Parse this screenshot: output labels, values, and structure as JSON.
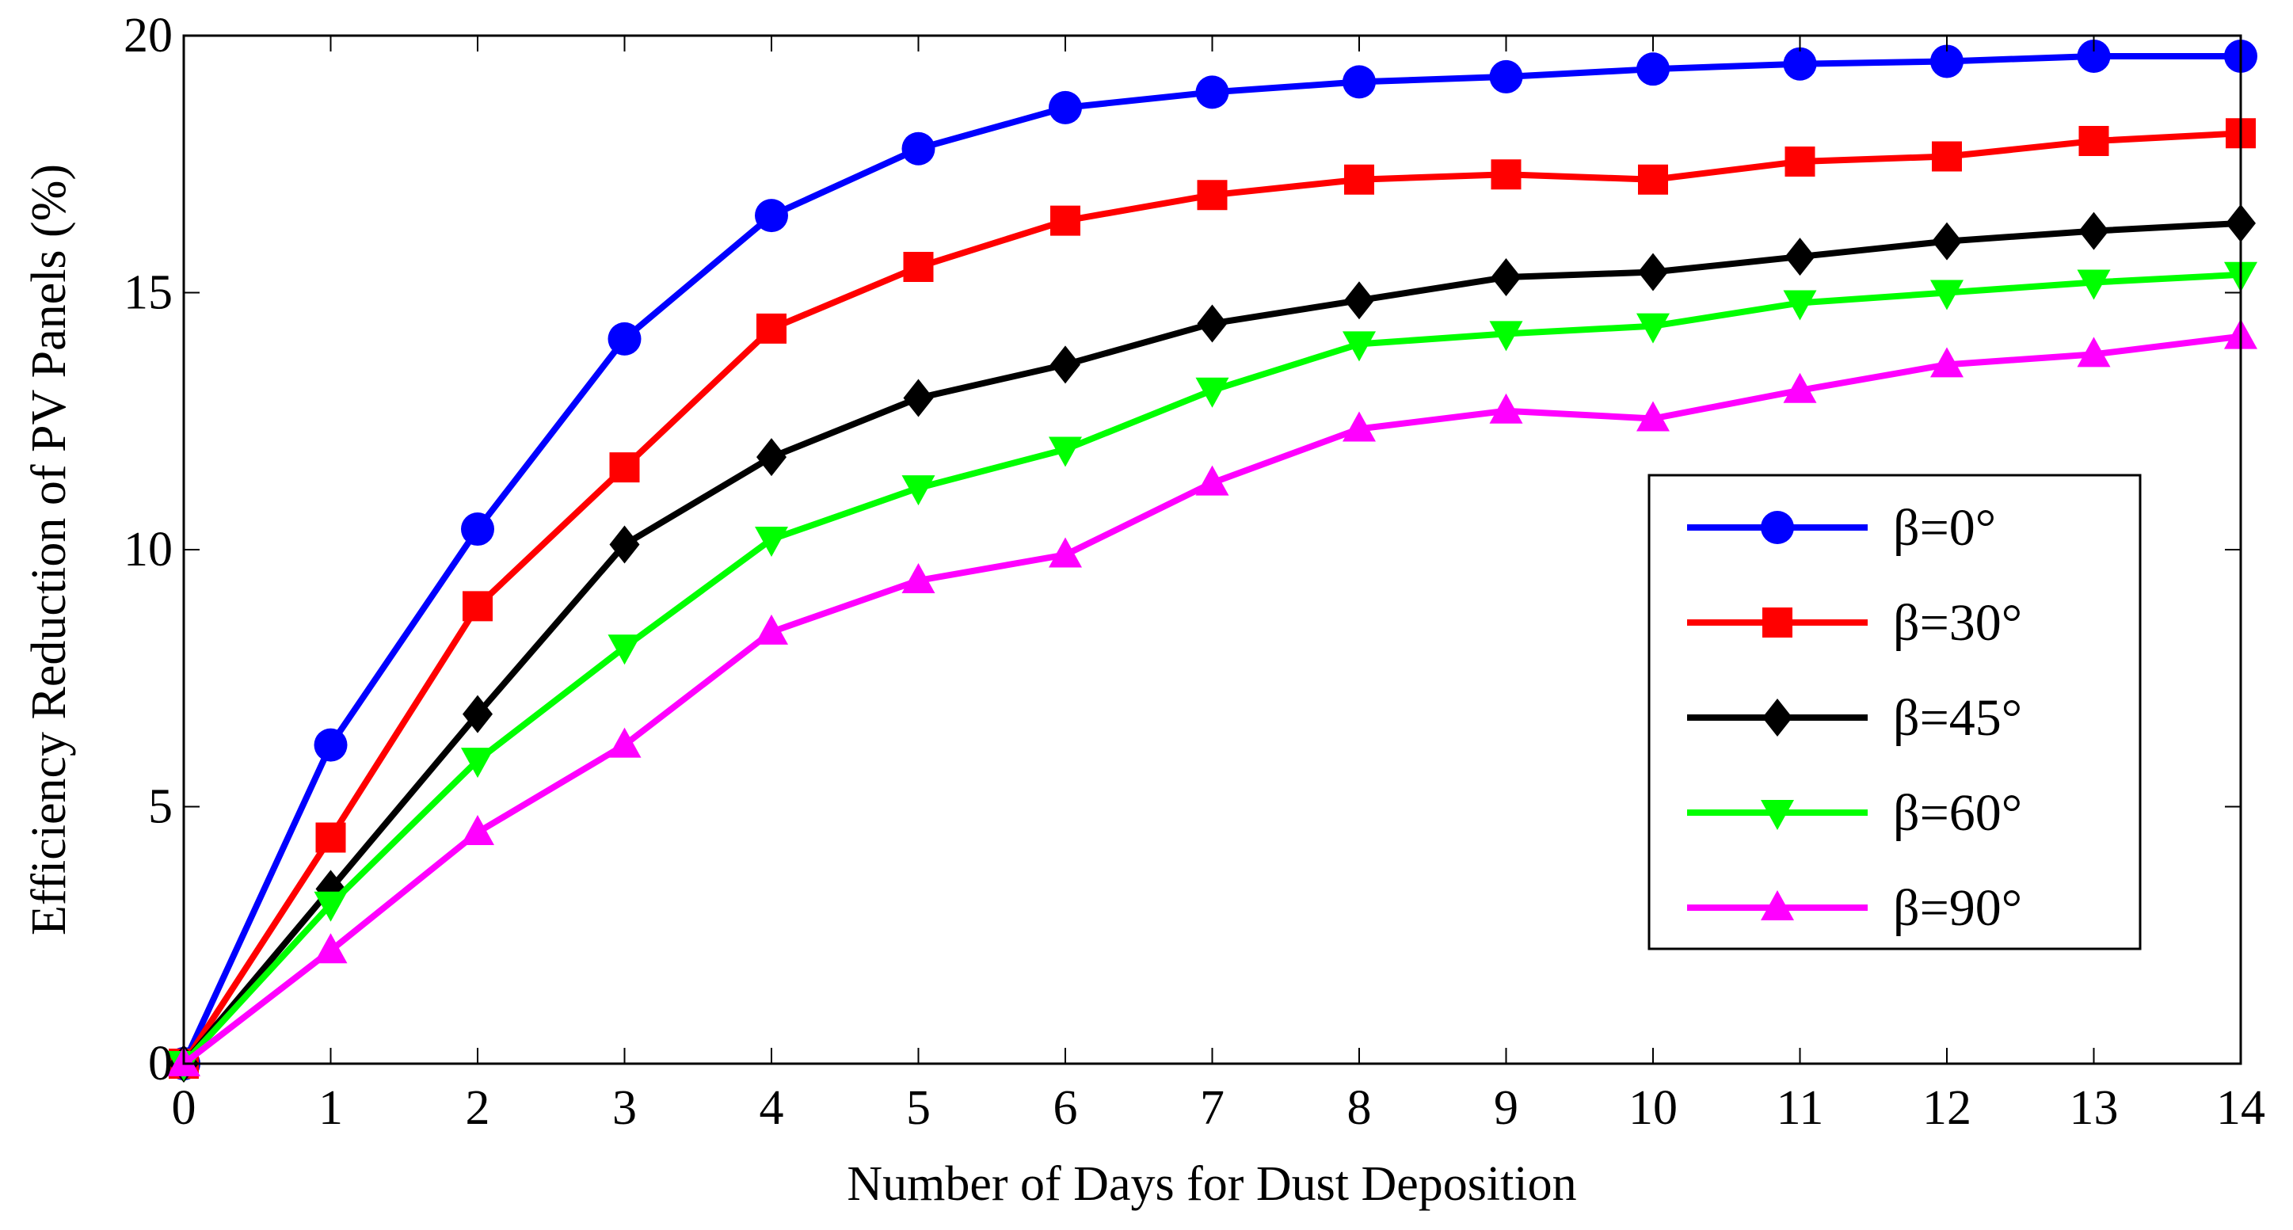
{
  "chart_data": {
    "type": "line",
    "title": "",
    "xlabel": "Number of Days for Dust Deposition",
    "ylabel": "Efficiency Reduction of PV Panels (%)",
    "xlim": [
      0,
      14
    ],
    "ylim": [
      0,
      20
    ],
    "x_ticks": [
      0,
      1,
      2,
      3,
      4,
      5,
      6,
      7,
      8,
      9,
      10,
      11,
      12,
      13,
      14
    ],
    "y_ticks": [
      0,
      5,
      10,
      15,
      20
    ],
    "x_tick_labels": [
      "0",
      "1",
      "2",
      "3",
      "4",
      "5",
      "6",
      "7",
      "8",
      "9",
      "10",
      "11",
      "12",
      "13",
      "14"
    ],
    "y_tick_labels": [
      "0",
      "5",
      "10",
      "15",
      "20"
    ],
    "grid": false,
    "legend_position": "center-right",
    "x": [
      0,
      1,
      2,
      3,
      4,
      5,
      6,
      7,
      8,
      9,
      10,
      11,
      12,
      13,
      14
    ],
    "series": [
      {
        "name": "β=0°",
        "color": "#0000ff",
        "marker": "circle",
        "values": [
          0,
          6.2,
          10.4,
          14.1,
          16.5,
          17.8,
          18.6,
          18.9,
          19.1,
          19.2,
          19.35,
          19.45,
          19.5,
          19.6,
          19.6
        ]
      },
      {
        "name": "β=30°",
        "color": "#ff0000",
        "marker": "square",
        "values": [
          0,
          4.4,
          8.9,
          11.6,
          14.3,
          15.5,
          16.4,
          16.9,
          17.2,
          17.3,
          17.2,
          17.55,
          17.65,
          17.95,
          18.1
        ]
      },
      {
        "name": "β=45°",
        "color": "#000000",
        "marker": "diamond",
        "values": [
          0,
          3.4,
          6.8,
          10.1,
          11.8,
          12.95,
          13.6,
          14.4,
          14.85,
          15.3,
          15.4,
          15.7,
          16.0,
          16.2,
          16.35
        ]
      },
      {
        "name": "β=60°",
        "color": "#00ff00",
        "marker": "triangle-down",
        "values": [
          0,
          3.1,
          5.9,
          8.1,
          10.2,
          11.2,
          11.95,
          13.1,
          14.0,
          14.2,
          14.35,
          14.8,
          15.0,
          15.2,
          15.35
        ]
      },
      {
        "name": "β=90°",
        "color": "#ff00ff",
        "marker": "triangle-up",
        "values": [
          0,
          2.2,
          4.5,
          6.2,
          8.4,
          9.4,
          9.9,
          11.3,
          12.35,
          12.7,
          12.55,
          13.1,
          13.6,
          13.8,
          14.15
        ]
      }
    ]
  }
}
